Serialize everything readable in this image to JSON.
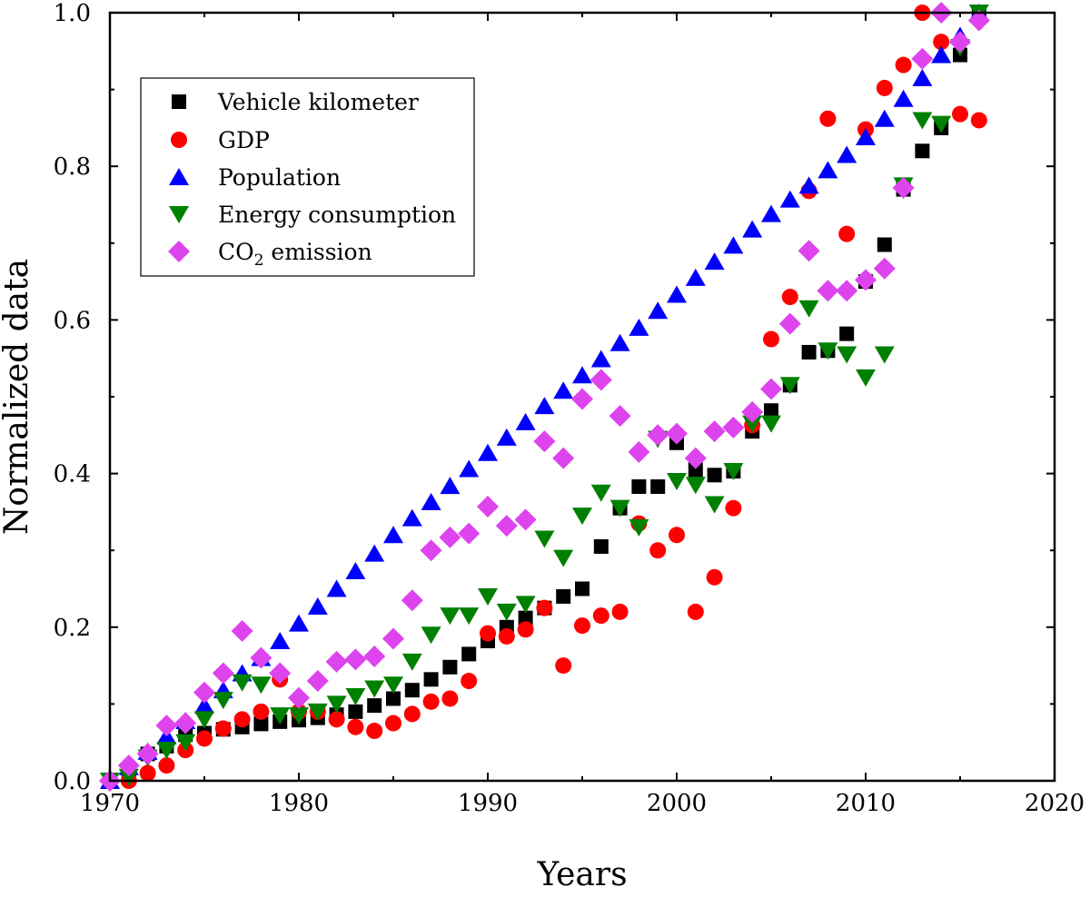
{
  "chart_data": {
    "type": "scatter",
    "title": "",
    "xlabel": "Years",
    "ylabel": "Normalized data",
    "xlim": [
      1970,
      2020
    ],
    "ylim": [
      0,
      1.0
    ],
    "xticks": [
      "1970",
      "1980",
      "1990",
      "2000",
      "2010",
      "2020"
    ],
    "yticks": [
      "0.0",
      "0.2",
      "0.4",
      "0.6",
      "0.8",
      "1.0"
    ],
    "legend_position": "top-left",
    "series": [
      {
        "name": "Vehicle kilometer",
        "marker": "square",
        "color": "#000000",
        "x": [
          1970,
          1971,
          1972,
          1973,
          1974,
          1975,
          1976,
          1977,
          1978,
          1979,
          1980,
          1981,
          1982,
          1983,
          1984,
          1985,
          1986,
          1987,
          1988,
          1989,
          1990,
          1991,
          1992,
          1993,
          1994,
          1995,
          1996,
          1997,
          1998,
          1999,
          2000,
          2001,
          2002,
          2003,
          2004,
          2005,
          2006,
          2007,
          2008,
          2009,
          2010,
          2011,
          2012,
          2013,
          2014,
          2015,
          2016
        ],
        "y": [
          0.0,
          0.01,
          0.035,
          0.045,
          0.06,
          0.062,
          0.067,
          0.07,
          0.074,
          0.077,
          0.079,
          0.082,
          0.086,
          0.09,
          0.098,
          0.107,
          0.118,
          0.132,
          0.148,
          0.165,
          0.182,
          0.2,
          0.212,
          0.225,
          0.24,
          0.25,
          0.305,
          0.355,
          0.383,
          0.383,
          0.44,
          0.405,
          0.398,
          0.403,
          0.455,
          0.482,
          0.515,
          0.558,
          0.56,
          0.582,
          0.65,
          0.698,
          0.77,
          0.82,
          0.85,
          0.945,
          1.0
        ]
      },
      {
        "name": "GDP",
        "marker": "circle",
        "color": "#ff0000",
        "x": [
          1970,
          1971,
          1972,
          1973,
          1974,
          1975,
          1976,
          1977,
          1978,
          1979,
          1980,
          1981,
          1982,
          1983,
          1984,
          1985,
          1986,
          1987,
          1988,
          1989,
          1990,
          1991,
          1992,
          1993,
          1994,
          1995,
          1996,
          1997,
          1998,
          1999,
          2000,
          2001,
          2002,
          2003,
          2004,
          2005,
          2006,
          2007,
          2008,
          2009,
          2010,
          2011,
          2012,
          2013,
          2014,
          2015,
          2016
        ],
        "y": [
          0.0,
          0.0,
          0.01,
          0.02,
          0.04,
          0.055,
          0.068,
          0.08,
          0.09,
          0.132,
          0.09,
          0.09,
          0.08,
          0.07,
          0.065,
          0.075,
          0.087,
          0.103,
          0.107,
          0.13,
          0.192,
          0.188,
          0.197,
          0.225,
          0.15,
          0.202,
          0.215,
          0.22,
          0.335,
          0.3,
          0.32,
          0.22,
          0.265,
          0.355,
          0.463,
          0.575,
          0.63,
          0.768,
          0.862,
          0.712,
          0.848,
          0.902,
          0.932,
          1.0,
          0.962,
          0.868,
          0.86
        ]
      },
      {
        "name": "Population",
        "marker": "triangle-up",
        "color": "#0000ff",
        "x": [
          1970,
          1971,
          1972,
          1973,
          1974,
          1975,
          1976,
          1977,
          1978,
          1979,
          1980,
          1981,
          1982,
          1983,
          1984,
          1985,
          1986,
          1987,
          1988,
          1989,
          1990,
          1991,
          1992,
          1993,
          1994,
          1995,
          1996,
          1997,
          1998,
          1999,
          2000,
          2001,
          2002,
          2003,
          2004,
          2005,
          2006,
          2007,
          2008,
          2009,
          2010,
          2011,
          2012,
          2013,
          2014,
          2015,
          2016
        ],
        "y": [
          0.0,
          0.018,
          0.038,
          0.058,
          0.078,
          0.098,
          0.118,
          0.14,
          0.16,
          0.182,
          0.205,
          0.227,
          0.25,
          0.273,
          0.296,
          0.32,
          0.342,
          0.363,
          0.384,
          0.406,
          0.427,
          0.447,
          0.467,
          0.488,
          0.508,
          0.528,
          0.549,
          0.57,
          0.59,
          0.612,
          0.633,
          0.655,
          0.676,
          0.697,
          0.718,
          0.738,
          0.757,
          0.775,
          0.795,
          0.815,
          0.838,
          0.862,
          0.888,
          0.915,
          0.945,
          0.97,
          1.0
        ]
      },
      {
        "name": "Energy consumption",
        "marker": "triangle-down",
        "color": "#008000",
        "x": [
          1970,
          1971,
          1972,
          1973,
          1974,
          1975,
          1976,
          1977,
          1978,
          1979,
          1980,
          1981,
          1982,
          1983,
          1984,
          1985,
          1986,
          1987,
          1988,
          1989,
          1990,
          1991,
          1992,
          1993,
          1994,
          1995,
          1996,
          1997,
          1998,
          1999,
          2000,
          2001,
          2002,
          2003,
          2004,
          2005,
          2006,
          2007,
          2008,
          2009,
          2010,
          2011,
          2012,
          2013,
          2014,
          2015,
          2016
        ],
        "y": [
          0.0,
          0.005,
          0.03,
          0.04,
          0.05,
          0.08,
          0.105,
          0.128,
          0.125,
          0.085,
          0.085,
          0.09,
          0.1,
          0.11,
          0.12,
          0.125,
          0.155,
          0.19,
          0.215,
          0.215,
          0.24,
          0.22,
          0.23,
          0.315,
          0.29,
          0.345,
          0.375,
          0.355,
          0.33,
          0.445,
          0.39,
          0.385,
          0.36,
          0.403,
          0.465,
          0.465,
          0.515,
          0.615,
          0.56,
          0.555,
          0.525,
          0.555,
          0.775,
          0.86,
          0.855,
          0.955,
          1.0
        ]
      },
      {
        "name": "CO2 emission",
        "marker": "diamond",
        "color": "#dd44ee",
        "x": [
          1970,
          1971,
          1972,
          1973,
          1974,
          1975,
          1976,
          1977,
          1978,
          1979,
          1980,
          1981,
          1982,
          1983,
          1984,
          1985,
          1986,
          1987,
          1988,
          1989,
          1990,
          1991,
          1992,
          1993,
          1994,
          1995,
          1996,
          1997,
          1998,
          1999,
          2000,
          2001,
          2002,
          2003,
          2004,
          2005,
          2006,
          2007,
          2008,
          2009,
          2010,
          2011,
          2012,
          2013,
          2014,
          2015,
          2016
        ],
        "y": [
          0.0,
          0.02,
          0.035,
          0.072,
          0.075,
          0.115,
          0.14,
          0.195,
          0.16,
          0.14,
          0.108,
          0.13,
          0.155,
          0.158,
          0.162,
          0.185,
          0.235,
          0.3,
          0.317,
          0.322,
          0.357,
          0.332,
          0.34,
          0.442,
          0.42,
          0.497,
          0.522,
          0.475,
          0.428,
          0.45,
          0.452,
          0.42,
          0.455,
          0.46,
          0.48,
          0.51,
          0.595,
          0.69,
          0.638,
          0.638,
          0.652,
          0.667,
          0.772,
          0.94,
          1.0,
          0.962,
          0.99
        ]
      }
    ]
  },
  "legend": {
    "entries": [
      {
        "main": "Vehicle kilometer",
        "sub": "",
        "tail": ""
      },
      {
        "main": "GDP",
        "sub": "",
        "tail": ""
      },
      {
        "main": "Population",
        "sub": "",
        "tail": ""
      },
      {
        "main": "Energy consumption",
        "sub": "",
        "tail": ""
      },
      {
        "main": "CO",
        "sub": "2",
        "tail": " emission"
      }
    ]
  }
}
